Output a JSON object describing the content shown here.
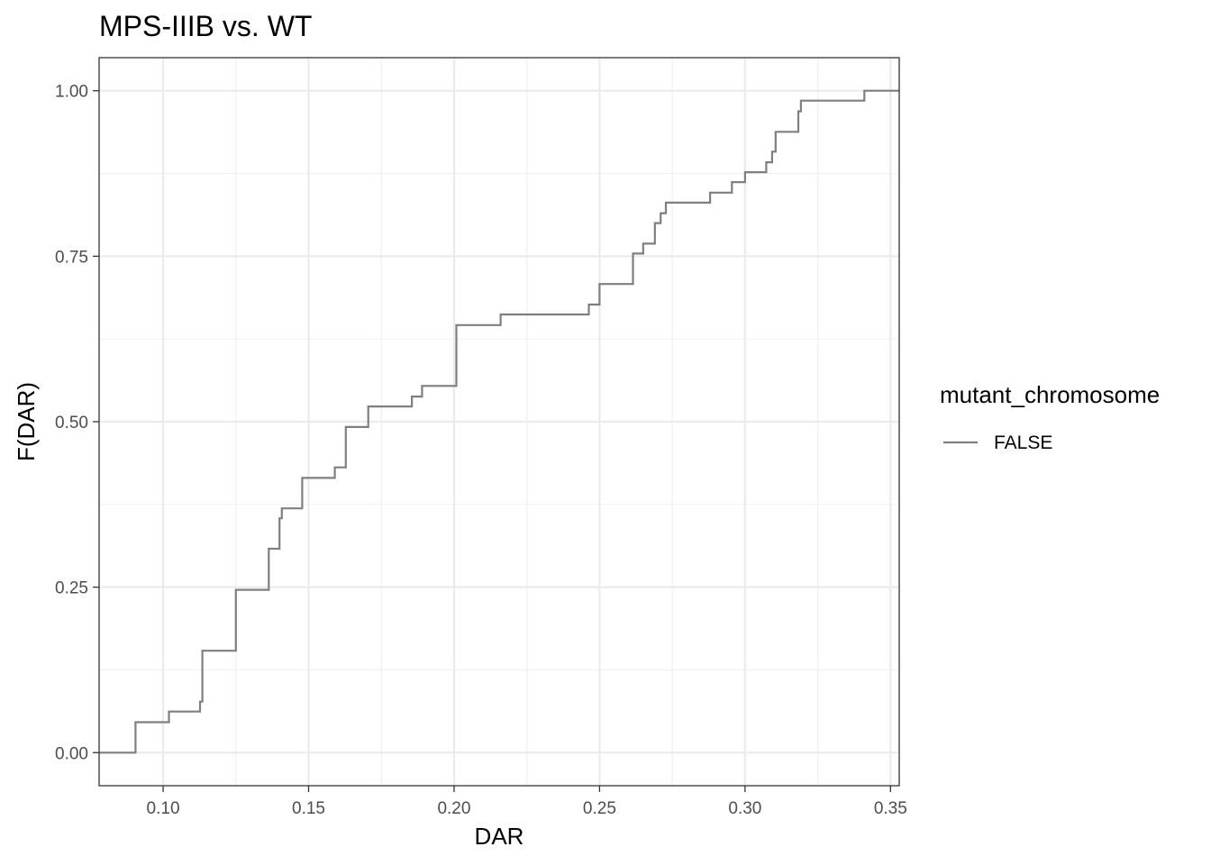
{
  "chart_data": {
    "type": "line",
    "step": true,
    "title": "MPS-IIIB vs. WT",
    "xlabel": "DAR",
    "ylabel": "F(DAR)",
    "xlim": [
      0.078,
      0.353
    ],
    "ylim": [
      -0.05,
      1.05
    ],
    "x_ticks": [
      0.1,
      0.15,
      0.2,
      0.25,
      0.3,
      0.35
    ],
    "x_tick_labels": [
      "0.10",
      "0.15",
      "0.20",
      "0.25",
      "0.30",
      "0.35"
    ],
    "y_ticks": [
      0.0,
      0.25,
      0.5,
      0.75,
      1.0
    ],
    "y_tick_labels": [
      "0.00",
      "0.25",
      "0.50",
      "0.75",
      "1.00"
    ],
    "grid": true,
    "legend": {
      "title": "mutant_chromosome",
      "position": "right",
      "entries": [
        {
          "label": "FALSE",
          "color": "#7f7f7f"
        }
      ]
    },
    "series": [
      {
        "name": "FALSE",
        "color": "#7f7f7f",
        "x": [
          0.078,
          0.0905,
          0.102,
          0.1127,
          0.1135,
          0.125,
          0.1363,
          0.14,
          0.1408,
          0.1478,
          0.159,
          0.1628,
          0.1705,
          0.1855,
          0.189,
          0.2008,
          0.216,
          0.2463,
          0.25,
          0.2615,
          0.265,
          0.269,
          0.271,
          0.2728,
          0.288,
          0.2955,
          0.3,
          0.3073,
          0.3093,
          0.3105,
          0.3183,
          0.3192,
          0.341,
          0.353
        ],
        "y": [
          0.0,
          0.046,
          0.062,
          0.077,
          0.154,
          0.246,
          0.308,
          0.354,
          0.369,
          0.415,
          0.431,
          0.492,
          0.523,
          0.538,
          0.554,
          0.646,
          0.662,
          0.677,
          0.708,
          0.754,
          0.769,
          0.8,
          0.815,
          0.831,
          0.846,
          0.862,
          0.877,
          0.892,
          0.908,
          0.938,
          0.969,
          0.985,
          1.0,
          1.0
        ]
      }
    ]
  }
}
